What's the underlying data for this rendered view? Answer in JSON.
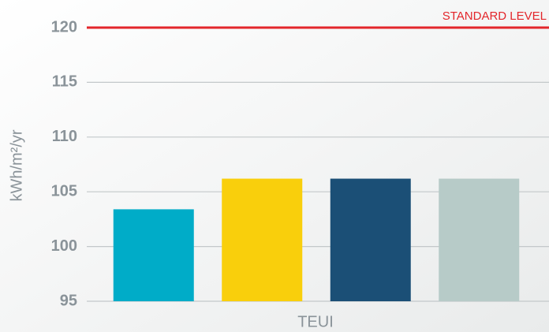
{
  "chart_data": {
    "type": "bar",
    "ylabel": "kWh/m²/yr",
    "xlabel": "TEUI",
    "values": [
      103.4,
      106.2,
      106.2,
      106.2
    ],
    "colors": [
      "#00acc8",
      "#f9cf0c",
      "#1b4f76",
      "#b7cbc8"
    ],
    "ylim": [
      95,
      120
    ],
    "yticks": [
      95,
      100,
      105,
      110,
      115,
      120
    ],
    "grid": true,
    "reference_line": {
      "value": 120,
      "label": "STANDARD LEVEL",
      "color": "#e3262b"
    }
  }
}
